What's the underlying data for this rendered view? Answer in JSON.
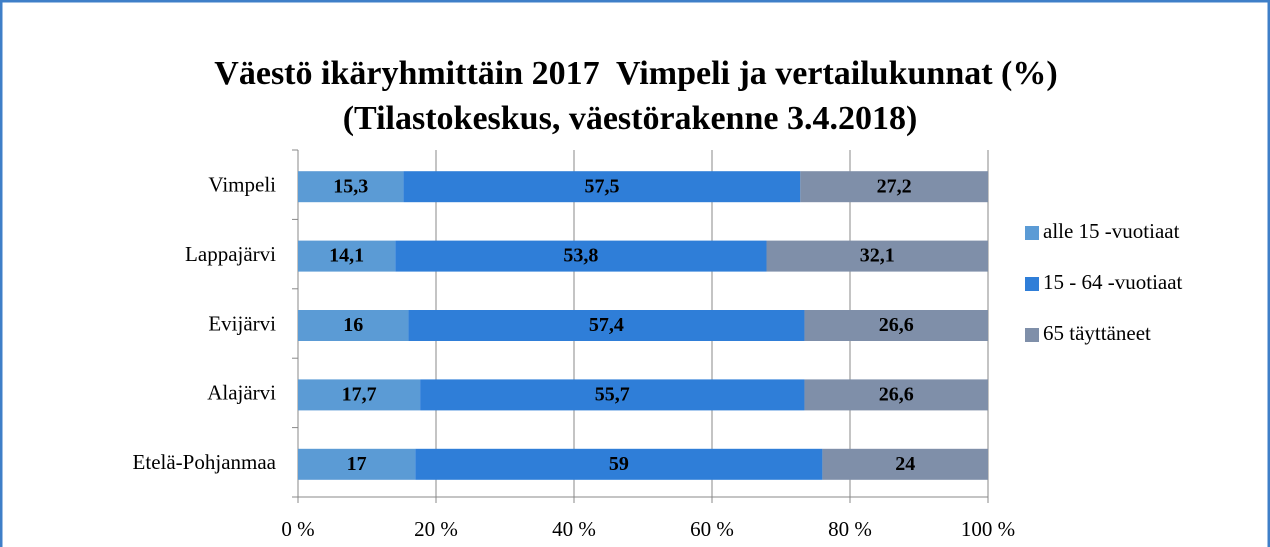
{
  "chart_data": {
    "type": "stacked_barh",
    "title": "Väestö ikäryhmittäin 2017  Vimpeli ja vertailukunnat (%)",
    "subtitle": "(Tilastokeskus, väestörakenne 3.4.2018)",
    "categories": [
      "Vimpeli",
      "Lappajärvi",
      "Evijärvi",
      "Alajärvi",
      "Etelä-Pohjanmaa"
    ],
    "series": [
      {
        "name": "alle 15 -vuotiaat",
        "color": "#5b9bd5",
        "values": [
          15.3,
          14.1,
          16,
          17.7,
          17
        ],
        "value_labels": [
          "15,3",
          "14,1",
          "16",
          "17,7",
          "17"
        ]
      },
      {
        "name": "15 - 64 -vuotiaat",
        "color": "#2f7ed8",
        "values": [
          57.5,
          53.8,
          57.4,
          55.7,
          59
        ],
        "value_labels": [
          "57,5",
          "53,8",
          "57,4",
          "55,7",
          "59"
        ]
      },
      {
        "name": "65 täyttäneet",
        "color": "#7f8fa9",
        "values": [
          27.2,
          32.1,
          26.6,
          26.6,
          24
        ],
        "value_labels": [
          "27,2",
          "32,1",
          "26,6",
          "26,6",
          "24"
        ]
      }
    ],
    "xlim": [
      0,
      100
    ],
    "xticks": [
      {
        "value": 0,
        "label": "0 %"
      },
      {
        "value": 20,
        "label": "20 %"
      },
      {
        "value": 40,
        "label": "40 %"
      },
      {
        "value": 60,
        "label": "60 %"
      },
      {
        "value": 80,
        "label": "80 %"
      },
      {
        "value": 100,
        "label": "100 %"
      }
    ],
    "grid": true,
    "legend": "right"
  }
}
